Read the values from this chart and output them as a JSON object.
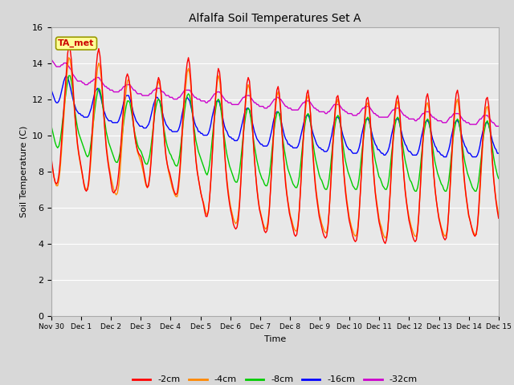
{
  "title": "Alfalfa Soil Temperatures Set A",
  "xlabel": "Time",
  "ylabel": "Soil Temperature (C)",
  "ylim": [
    0,
    16
  ],
  "yticks": [
    0,
    2,
    4,
    6,
    8,
    10,
    12,
    14,
    16
  ],
  "figure_bg_color": "#d8d8d8",
  "plot_bg_color": "#e8e8e8",
  "annotation_text": "TA_met",
  "annotation_color": "#cc0000",
  "annotation_bg": "#ffff99",
  "line_colors": {
    "-2cm": "#ff0000",
    "-4cm": "#ff8800",
    "-8cm": "#00cc00",
    "-16cm": "#0000ff",
    "-32cm": "#cc00cc"
  },
  "xtick_labels": [
    "Nov 30",
    "Dec 1",
    "Dec 2",
    "Dec 3",
    "Dec 4",
    "Dec 5",
    "Dec 6",
    "Dec 7",
    "Dec 8",
    "Dec 9",
    "Dec 10",
    "Dec 11",
    "Dec 12",
    "Dec 13",
    "Dec 14",
    "Dec 15"
  ],
  "data_2cm": [
    8.7,
    8.2,
    7.7,
    7.4,
    7.3,
    7.4,
    7.8,
    8.5,
    9.5,
    10.5,
    11.5,
    12.5,
    13.5,
    14.5,
    15.0,
    14.8,
    14.2,
    13.2,
    12.0,
    11.0,
    10.2,
    9.5,
    9.0,
    8.6,
    8.2,
    7.8,
    7.3,
    7.0,
    6.9,
    7.0,
    7.5,
    8.3,
    9.4,
    10.5,
    11.6,
    12.8,
    13.8,
    14.5,
    14.8,
    14.4,
    13.6,
    12.4,
    11.2,
    10.2,
    9.3,
    8.7,
    8.2,
    7.8,
    7.3,
    6.9,
    6.8,
    6.9,
    7.0,
    7.3,
    7.9,
    8.7,
    9.7,
    10.7,
    11.7,
    12.6,
    13.2,
    13.4,
    13.2,
    12.7,
    12.0,
    11.2,
    10.5,
    9.9,
    9.5,
    9.2,
    9.0,
    8.9,
    8.8,
    8.5,
    8.1,
    7.7,
    7.3,
    7.1,
    7.2,
    7.7,
    8.5,
    9.5,
    10.5,
    11.5,
    12.3,
    12.9,
    13.2,
    13.0,
    12.4,
    11.4,
    10.4,
    9.5,
    8.8,
    8.4,
    8.1,
    7.9,
    7.6,
    7.3,
    7.0,
    6.8,
    6.7,
    6.8,
    7.3,
    8.0,
    9.0,
    10.3,
    11.5,
    12.6,
    13.4,
    14.0,
    14.3,
    13.9,
    13.0,
    11.8,
    10.6,
    9.5,
    8.6,
    8.0,
    7.6,
    7.2,
    6.8,
    6.5,
    6.2,
    5.8,
    5.5,
    5.5,
    5.8,
    6.5,
    7.5,
    8.7,
    10.0,
    11.3,
    12.3,
    13.2,
    13.7,
    13.5,
    12.8,
    11.6,
    10.3,
    9.1,
    8.1,
    7.3,
    6.7,
    6.2,
    5.8,
    5.5,
    5.1,
    4.9,
    4.8,
    4.9,
    5.3,
    6.1,
    7.3,
    8.6,
    9.9,
    11.1,
    12.1,
    12.9,
    13.2,
    13.0,
    12.2,
    11.0,
    9.8,
    8.7,
    7.8,
    7.0,
    6.4,
    5.9,
    5.6,
    5.3,
    5.0,
    4.7,
    4.6,
    4.7,
    5.1,
    5.9,
    7.1,
    8.4,
    9.7,
    10.9,
    11.8,
    12.5,
    12.7,
    12.3,
    11.5,
    10.3,
    9.2,
    8.2,
    7.3,
    6.7,
    6.2,
    5.7,
    5.4,
    5.1,
    4.8,
    4.5,
    4.4,
    4.5,
    5.0,
    5.8,
    7.0,
    8.3,
    9.6,
    10.8,
    11.7,
    12.3,
    12.5,
    12.0,
    11.2,
    10.0,
    8.9,
    7.9,
    7.1,
    6.5,
    6.0,
    5.5,
    5.2,
    4.9,
    4.6,
    4.4,
    4.3,
    4.4,
    4.9,
    5.8,
    7.0,
    8.3,
    9.6,
    10.7,
    11.6,
    12.1,
    12.2,
    11.8,
    11.0,
    9.8,
    8.7,
    7.7,
    6.9,
    6.3,
    5.8,
    5.3,
    5.0,
    4.7,
    4.4,
    4.2,
    4.1,
    4.2,
    4.7,
    5.6,
    6.8,
    8.1,
    9.4,
    10.5,
    11.4,
    12.0,
    12.1,
    11.7,
    10.9,
    9.7,
    8.6,
    7.6,
    6.8,
    6.2,
    5.7,
    5.2,
    4.9,
    4.6,
    4.3,
    4.1,
    4.0,
    4.2,
    4.7,
    5.7,
    6.9,
    8.2,
    9.5,
    10.6,
    11.5,
    12.0,
    12.2,
    11.8,
    11.0,
    9.8,
    8.7,
    7.7,
    6.9,
    6.3,
    5.8,
    5.3,
    5.0,
    4.7,
    4.4,
    4.2,
    4.1,
    4.2,
    4.7,
    5.6,
    6.9,
    8.2,
    9.5,
    10.6,
    11.5,
    12.1,
    12.3,
    11.9,
    11.1,
    9.9,
    8.8,
    7.8,
    7.0,
    6.4,
    5.9,
    5.4,
    5.1,
    4.8,
    4.5,
    4.3,
    4.2,
    4.3,
    4.8,
    5.8,
    7.1,
    8.4,
    9.7,
    10.8,
    11.7,
    12.3,
    12.5,
    12.1,
    11.3,
    10.1,
    9.0,
    8.0,
    7.2,
    6.6,
    6.1,
    5.6,
    5.3,
    5.0,
    4.7,
    4.5,
    4.4,
    4.5,
    5.0,
    5.9,
    7.1,
    8.3,
    9.5,
    10.6,
    11.5,
    12.0,
    12.1,
    11.7,
    10.9,
    9.7,
    8.6,
    7.6,
    6.9,
    6.3,
    5.8,
    5.4
  ],
  "data_4cm": [
    8.5,
    8.1,
    7.7,
    7.4,
    7.2,
    7.2,
    7.5,
    8.1,
    9.0,
    10.0,
    11.0,
    12.0,
    13.0,
    13.8,
    14.3,
    14.2,
    13.7,
    12.8,
    11.8,
    10.9,
    10.1,
    9.4,
    8.9,
    8.5,
    8.1,
    7.7,
    7.4,
    7.1,
    7.0,
    7.0,
    7.3,
    8.0,
    8.9,
    10.0,
    11.0,
    12.1,
    13.0,
    13.7,
    14.0,
    13.8,
    13.2,
    12.2,
    11.2,
    10.3,
    9.5,
    8.9,
    8.4,
    8.0,
    7.6,
    7.3,
    7.0,
    6.8,
    6.7,
    6.8,
    7.2,
    7.9,
    8.9,
    9.9,
    10.9,
    11.8,
    12.5,
    13.0,
    13.1,
    12.8,
    12.2,
    11.4,
    10.6,
    10.0,
    9.5,
    9.1,
    8.9,
    8.7,
    8.5,
    8.2,
    7.9,
    7.5,
    7.2,
    7.1,
    7.3,
    7.8,
    8.7,
    9.7,
    10.7,
    11.6,
    12.3,
    12.8,
    13.0,
    12.8,
    12.3,
    11.4,
    10.5,
    9.6,
    8.9,
    8.4,
    8.0,
    7.7,
    7.4,
    7.1,
    6.9,
    6.7,
    6.6,
    6.6,
    7.0,
    7.7,
    8.7,
    9.9,
    11.0,
    12.0,
    12.8,
    13.5,
    13.7,
    13.4,
    12.7,
    11.7,
    10.6,
    9.6,
    8.7,
    8.1,
    7.6,
    7.2,
    6.8,
    6.5,
    6.3,
    6.0,
    5.7,
    5.6,
    5.8,
    6.5,
    7.5,
    8.7,
    9.9,
    11.1,
    12.1,
    12.9,
    13.3,
    13.1,
    12.4,
    11.3,
    10.2,
    9.2,
    8.2,
    7.5,
    6.9,
    6.4,
    6.0,
    5.7,
    5.4,
    5.2,
    5.1,
    5.2,
    5.6,
    6.3,
    7.4,
    8.6,
    9.8,
    10.9,
    11.8,
    12.5,
    12.8,
    12.6,
    11.9,
    10.8,
    9.7,
    8.7,
    7.8,
    7.1,
    6.5,
    6.0,
    5.7,
    5.4,
    5.1,
    4.9,
    4.8,
    4.9,
    5.3,
    6.0,
    7.1,
    8.3,
    9.5,
    10.6,
    11.5,
    12.2,
    12.4,
    12.1,
    11.4,
    10.3,
    9.3,
    8.3,
    7.5,
    6.8,
    6.3,
    5.9,
    5.5,
    5.3,
    5.0,
    4.8,
    4.7,
    4.7,
    5.1,
    5.9,
    7.0,
    8.2,
    9.4,
    10.5,
    11.4,
    12.0,
    12.2,
    11.9,
    11.2,
    10.1,
    9.1,
    8.1,
    7.3,
    6.7,
    6.2,
    5.7,
    5.4,
    5.1,
    4.9,
    4.7,
    4.6,
    4.6,
    5.0,
    5.8,
    6.9,
    8.1,
    9.3,
    10.4,
    11.3,
    11.8,
    12.0,
    11.6,
    10.9,
    9.8,
    8.8,
    7.8,
    7.1,
    6.5,
    6.0,
    5.5,
    5.2,
    4.9,
    4.7,
    4.5,
    4.4,
    4.5,
    4.9,
    5.7,
    6.8,
    8.0,
    9.2,
    10.3,
    11.1,
    11.7,
    11.8,
    11.5,
    10.7,
    9.7,
    8.7,
    7.7,
    6.9,
    6.4,
    5.9,
    5.4,
    5.1,
    4.9,
    4.6,
    4.4,
    4.3,
    4.4,
    4.8,
    5.7,
    6.8,
    8.0,
    9.2,
    10.3,
    11.2,
    11.7,
    11.9,
    11.5,
    10.8,
    9.7,
    8.7,
    7.8,
    7.0,
    6.4,
    5.9,
    5.5,
    5.2,
    4.9,
    4.7,
    4.5,
    4.4,
    4.4,
    4.8,
    5.7,
    6.8,
    8.0,
    9.2,
    10.3,
    11.1,
    11.7,
    11.8,
    11.5,
    10.8,
    9.7,
    8.7,
    7.8,
    7.0,
    6.4,
    5.9,
    5.5,
    5.2,
    4.9,
    4.7,
    4.5,
    4.4,
    4.5,
    4.9,
    5.8,
    6.9,
    8.1,
    9.3,
    10.4,
    11.3,
    11.8,
    12.0,
    11.6,
    10.9,
    9.8,
    8.8,
    7.8,
    7.1,
    6.5,
    6.0,
    5.5,
    5.3,
    5.0,
    4.8,
    4.6,
    4.5,
    4.5,
    4.9,
    5.7,
    6.8,
    8.0,
    9.1,
    10.2,
    11.0,
    11.5,
    11.6,
    11.3,
    10.6,
    9.6,
    8.6,
    7.7,
    7.0,
    6.4,
    6.0,
    5.6
  ],
  "data_8cm": [
    10.5,
    10.2,
    9.9,
    9.6,
    9.4,
    9.3,
    9.4,
    9.7,
    10.2,
    10.8,
    11.4,
    12.0,
    12.5,
    13.0,
    13.3,
    13.3,
    13.0,
    12.5,
    11.9,
    11.3,
    10.8,
    10.4,
    10.1,
    9.9,
    9.7,
    9.5,
    9.3,
    9.1,
    8.9,
    8.8,
    8.9,
    9.2,
    9.7,
    10.3,
    10.9,
    11.5,
    12.0,
    12.4,
    12.6,
    12.5,
    12.2,
    11.7,
    11.2,
    10.7,
    10.2,
    9.9,
    9.6,
    9.4,
    9.2,
    9.0,
    8.8,
    8.6,
    8.5,
    8.5,
    8.7,
    9.0,
    9.5,
    10.1,
    10.7,
    11.2,
    11.6,
    11.9,
    11.9,
    11.8,
    11.4,
    11.0,
    10.5,
    10.1,
    9.8,
    9.5,
    9.3,
    9.2,
    9.1,
    8.9,
    8.7,
    8.5,
    8.4,
    8.4,
    8.6,
    8.9,
    9.4,
    10.0,
    10.6,
    11.2,
    11.6,
    11.9,
    12.0,
    11.9,
    11.5,
    11.0,
    10.5,
    10.1,
    9.7,
    9.4,
    9.2,
    9.0,
    8.9,
    8.7,
    8.6,
    8.4,
    8.3,
    8.3,
    8.5,
    8.9,
    9.5,
    10.1,
    10.8,
    11.4,
    11.9,
    12.2,
    12.3,
    12.2,
    11.8,
    11.3,
    10.7,
    10.2,
    9.7,
    9.4,
    9.1,
    8.9,
    8.7,
    8.5,
    8.3,
    8.1,
    7.9,
    7.8,
    8.0,
    8.4,
    9.0,
    9.7,
    10.4,
    11.0,
    11.5,
    11.9,
    12.0,
    11.9,
    11.5,
    10.9,
    10.3,
    9.8,
    9.3,
    8.9,
    8.6,
    8.3,
    8.1,
    7.9,
    7.7,
    7.5,
    7.4,
    7.4,
    7.6,
    8.0,
    8.6,
    9.3,
    10.0,
    10.6,
    11.1,
    11.4,
    11.5,
    11.4,
    11.0,
    10.5,
    9.9,
    9.4,
    9.0,
    8.6,
    8.3,
    8.0,
    7.8,
    7.6,
    7.5,
    7.3,
    7.2,
    7.2,
    7.4,
    7.8,
    8.4,
    9.1,
    9.8,
    10.4,
    10.9,
    11.2,
    11.3,
    11.2,
    10.8,
    10.3,
    9.7,
    9.2,
    8.8,
    8.4,
    8.1,
    7.9,
    7.7,
    7.5,
    7.3,
    7.2,
    7.1,
    7.1,
    7.3,
    7.7,
    8.3,
    9.0,
    9.7,
    10.3,
    10.8,
    11.1,
    11.2,
    11.1,
    10.7,
    10.2,
    9.6,
    9.1,
    8.7,
    8.4,
    8.1,
    7.8,
    7.6,
    7.5,
    7.3,
    7.1,
    7.0,
    7.0,
    7.2,
    7.6,
    8.2,
    8.9,
    9.6,
    10.2,
    10.7,
    11.0,
    11.1,
    11.0,
    10.6,
    10.1,
    9.5,
    9.0,
    8.6,
    8.3,
    8.0,
    7.8,
    7.6,
    7.4,
    7.2,
    7.1,
    7.0,
    7.0,
    7.2,
    7.6,
    8.2,
    8.9,
    9.5,
    10.1,
    10.6,
    10.9,
    11.0,
    10.9,
    10.5,
    10.0,
    9.5,
    9.0,
    8.6,
    8.3,
    8.0,
    7.7,
    7.6,
    7.4,
    7.2,
    7.1,
    7.0,
    7.0,
    7.2,
    7.6,
    8.2,
    8.9,
    9.5,
    10.1,
    10.6,
    10.9,
    11.0,
    10.9,
    10.5,
    10.0,
    9.5,
    9.0,
    8.6,
    8.3,
    8.0,
    7.7,
    7.5,
    7.4,
    7.2,
    7.0,
    6.9,
    6.9,
    7.1,
    7.5,
    8.1,
    8.8,
    9.5,
    10.1,
    10.5,
    10.8,
    10.9,
    10.8,
    10.4,
    9.9,
    9.4,
    8.9,
    8.5,
    8.2,
    7.9,
    7.7,
    7.5,
    7.3,
    7.2,
    7.0,
    6.9,
    6.9,
    7.1,
    7.5,
    8.1,
    8.8,
    9.5,
    10.1,
    10.5,
    10.8,
    10.9,
    10.8,
    10.4,
    9.9,
    9.4,
    8.9,
    8.5,
    8.2,
    7.9,
    7.7,
    7.5,
    7.3,
    7.1,
    7.0,
    6.9,
    6.9,
    7.1,
    7.5,
    8.1,
    8.7,
    9.4,
    10.0,
    10.4,
    10.7,
    10.8,
    10.6,
    10.3,
    9.8,
    9.3,
    8.8,
    8.4,
    8.1,
    7.8,
    7.6
  ],
  "data_16cm": [
    12.5,
    12.3,
    12.1,
    11.9,
    11.8,
    11.8,
    11.9,
    12.1,
    12.4,
    12.7,
    13.0,
    13.2,
    13.3,
    13.2,
    13.0,
    12.7,
    12.4,
    12.1,
    11.8,
    11.6,
    11.4,
    11.3,
    11.2,
    11.2,
    11.1,
    11.1,
    11.0,
    11.0,
    11.0,
    11.0,
    11.1,
    11.3,
    11.5,
    11.8,
    12.1,
    12.4,
    12.5,
    12.6,
    12.5,
    12.3,
    12.0,
    11.7,
    11.4,
    11.2,
    11.0,
    10.9,
    10.8,
    10.8,
    10.8,
    10.7,
    10.7,
    10.7,
    10.7,
    10.7,
    10.8,
    11.0,
    11.2,
    11.5,
    11.8,
    12.0,
    12.2,
    12.2,
    12.2,
    12.0,
    11.8,
    11.5,
    11.2,
    11.0,
    10.8,
    10.7,
    10.6,
    10.5,
    10.5,
    10.5,
    10.4,
    10.4,
    10.4,
    10.5,
    10.6,
    10.8,
    11.1,
    11.4,
    11.7,
    11.9,
    12.1,
    12.1,
    12.0,
    11.9,
    11.6,
    11.3,
    11.0,
    10.8,
    10.6,
    10.5,
    10.4,
    10.3,
    10.3,
    10.2,
    10.2,
    10.2,
    10.2,
    10.2,
    10.3,
    10.5,
    10.8,
    11.2,
    11.5,
    11.8,
    12.0,
    12.1,
    12.0,
    11.9,
    11.6,
    11.3,
    11.0,
    10.7,
    10.5,
    10.4,
    10.2,
    10.2,
    10.1,
    10.1,
    10.0,
    10.0,
    10.0,
    10.0,
    10.1,
    10.3,
    10.6,
    11.0,
    11.3,
    11.6,
    11.8,
    11.9,
    11.9,
    11.8,
    11.5,
    11.2,
    10.8,
    10.5,
    10.3,
    10.2,
    10.0,
    9.9,
    9.9,
    9.8,
    9.8,
    9.7,
    9.7,
    9.7,
    9.8,
    10.0,
    10.3,
    10.6,
    10.9,
    11.2,
    11.4,
    11.5,
    11.5,
    11.4,
    11.1,
    10.8,
    10.5,
    10.2,
    10.0,
    9.8,
    9.7,
    9.6,
    9.5,
    9.5,
    9.4,
    9.4,
    9.4,
    9.4,
    9.5,
    9.7,
    10.0,
    10.3,
    10.7,
    11.0,
    11.2,
    11.3,
    11.3,
    11.2,
    10.9,
    10.6,
    10.3,
    10.0,
    9.8,
    9.7,
    9.5,
    9.5,
    9.4,
    9.4,
    9.3,
    9.3,
    9.3,
    9.3,
    9.4,
    9.6,
    9.9,
    10.2,
    10.5,
    10.8,
    11.0,
    11.1,
    11.1,
    11.0,
    10.7,
    10.4,
    10.1,
    9.9,
    9.7,
    9.5,
    9.4,
    9.3,
    9.3,
    9.2,
    9.2,
    9.1,
    9.1,
    9.1,
    9.2,
    9.4,
    9.7,
    10.0,
    10.4,
    10.7,
    10.9,
    11.0,
    11.0,
    10.9,
    10.6,
    10.3,
    10.0,
    9.8,
    9.6,
    9.4,
    9.3,
    9.2,
    9.2,
    9.1,
    9.0,
    9.0,
    9.0,
    9.0,
    9.1,
    9.3,
    9.6,
    10.0,
    10.3,
    10.6,
    10.8,
    10.9,
    10.9,
    10.8,
    10.5,
    10.2,
    9.9,
    9.7,
    9.5,
    9.4,
    9.2,
    9.2,
    9.1,
    9.0,
    9.0,
    8.9,
    8.9,
    9.0,
    9.1,
    9.3,
    9.6,
    10.0,
    10.3,
    10.6,
    10.8,
    10.9,
    10.9,
    10.8,
    10.5,
    10.2,
    9.9,
    9.7,
    9.5,
    9.4,
    9.2,
    9.1,
    9.1,
    9.0,
    8.9,
    8.9,
    8.9,
    8.9,
    9.0,
    9.2,
    9.5,
    9.9,
    10.2,
    10.5,
    10.7,
    10.8,
    10.8,
    10.7,
    10.4,
    10.1,
    9.8,
    9.6,
    9.4,
    9.3,
    9.1,
    9.1,
    9.0,
    8.9,
    8.9,
    8.8,
    8.8,
    8.8,
    9.0,
    9.2,
    9.5,
    9.9,
    10.2,
    10.5,
    10.7,
    10.8,
    10.8,
    10.7,
    10.4,
    10.1,
    9.8,
    9.6,
    9.4,
    9.3,
    9.1,
    9.0,
    9.0,
    8.9,
    8.8,
    8.8,
    8.8,
    8.8,
    8.9,
    9.1,
    9.4,
    9.8,
    10.1,
    10.4,
    10.6,
    10.7,
    10.7,
    10.6,
    10.3,
    10.0,
    9.7,
    9.5,
    9.3,
    9.2,
    9.0,
    9.0
  ],
  "data_32cm": [
    14.2,
    14.1,
    14.0,
    13.9,
    13.8,
    13.8,
    13.8,
    13.8,
    13.9,
    13.9,
    14.0,
    14.0,
    14.0,
    13.9,
    13.8,
    13.7,
    13.6,
    13.4,
    13.3,
    13.2,
    13.1,
    13.0,
    13.0,
    13.0,
    13.0,
    12.9,
    12.9,
    12.8,
    12.8,
    12.8,
    12.9,
    12.9,
    13.0,
    13.0,
    13.1,
    13.1,
    13.2,
    13.2,
    13.2,
    13.1,
    13.0,
    12.9,
    12.8,
    12.7,
    12.7,
    12.6,
    12.6,
    12.5,
    12.5,
    12.5,
    12.4,
    12.4,
    12.4,
    12.4,
    12.4,
    12.5,
    12.5,
    12.6,
    12.7,
    12.7,
    12.8,
    12.8,
    12.8,
    12.8,
    12.7,
    12.6,
    12.5,
    12.5,
    12.4,
    12.3,
    12.3,
    12.3,
    12.3,
    12.2,
    12.2,
    12.2,
    12.2,
    12.2,
    12.2,
    12.3,
    12.3,
    12.4,
    12.5,
    12.5,
    12.6,
    12.6,
    12.6,
    12.6,
    12.5,
    12.4,
    12.4,
    12.3,
    12.2,
    12.2,
    12.2,
    12.1,
    12.1,
    12.1,
    12.0,
    12.0,
    12.0,
    12.0,
    12.1,
    12.1,
    12.2,
    12.3,
    12.4,
    12.5,
    12.5,
    12.5,
    12.5,
    12.5,
    12.4,
    12.3,
    12.2,
    12.1,
    12.1,
    12.0,
    12.0,
    12.0,
    11.9,
    11.9,
    11.9,
    11.9,
    11.8,
    11.8,
    11.9,
    11.9,
    12.0,
    12.1,
    12.2,
    12.3,
    12.3,
    12.4,
    12.4,
    12.4,
    12.3,
    12.2,
    12.1,
    12.0,
    11.9,
    11.9,
    11.8,
    11.8,
    11.8,
    11.7,
    11.7,
    11.7,
    11.7,
    11.7,
    11.7,
    11.8,
    11.9,
    12.0,
    12.1,
    12.1,
    12.2,
    12.2,
    12.2,
    12.2,
    12.1,
    12.0,
    11.9,
    11.8,
    11.8,
    11.7,
    11.7,
    11.6,
    11.6,
    11.6,
    11.6,
    11.5,
    11.5,
    11.5,
    11.6,
    11.6,
    11.7,
    11.8,
    11.9,
    12.0,
    12.0,
    12.1,
    12.1,
    12.0,
    12.0,
    11.9,
    11.8,
    11.7,
    11.6,
    11.6,
    11.5,
    11.5,
    11.5,
    11.4,
    11.4,
    11.4,
    11.4,
    11.4,
    11.4,
    11.5,
    11.6,
    11.7,
    11.8,
    11.8,
    11.9,
    11.9,
    11.9,
    11.9,
    11.8,
    11.7,
    11.6,
    11.5,
    11.5,
    11.4,
    11.4,
    11.3,
    11.3,
    11.3,
    11.3,
    11.3,
    11.2,
    11.2,
    11.3,
    11.3,
    11.4,
    11.5,
    11.6,
    11.7,
    11.7,
    11.7,
    11.7,
    11.7,
    11.6,
    11.5,
    11.4,
    11.4,
    11.3,
    11.3,
    11.2,
    11.2,
    11.2,
    11.2,
    11.1,
    11.1,
    11.1,
    11.1,
    11.2,
    11.2,
    11.3,
    11.4,
    11.5,
    11.5,
    11.6,
    11.6,
    11.6,
    11.6,
    11.5,
    11.4,
    11.3,
    11.2,
    11.2,
    11.1,
    11.1,
    11.0,
    11.0,
    11.0,
    11.0,
    11.0,
    11.0,
    11.0,
    11.0,
    11.1,
    11.2,
    11.3,
    11.4,
    11.4,
    11.5,
    11.5,
    11.5,
    11.5,
    11.4,
    11.3,
    11.2,
    11.1,
    11.1,
    11.0,
    11.0,
    10.9,
    10.9,
    10.9,
    10.9,
    10.9,
    10.8,
    10.8,
    10.9,
    10.9,
    11.0,
    11.1,
    11.2,
    11.2,
    11.3,
    11.3,
    11.3,
    11.3,
    11.2,
    11.1,
    11.0,
    11.0,
    10.9,
    10.9,
    10.8,
    10.8,
    10.8,
    10.8,
    10.7,
    10.7,
    10.7,
    10.7,
    10.8,
    10.9,
    11.0,
    11.0,
    11.1,
    11.2,
    11.2,
    11.2,
    11.2,
    11.2,
    11.1,
    11.0,
    10.9,
    10.8,
    10.8,
    10.7,
    10.7,
    10.7,
    10.6,
    10.6,
    10.6,
    10.6,
    10.6,
    10.6,
    10.7,
    10.8,
    10.9,
    10.9,
    11.0,
    11.1,
    11.1,
    11.1,
    11.1,
    11.0,
    10.9,
    10.8,
    10.7,
    10.7,
    10.6,
    10.5,
    10.5,
    10.5
  ]
}
